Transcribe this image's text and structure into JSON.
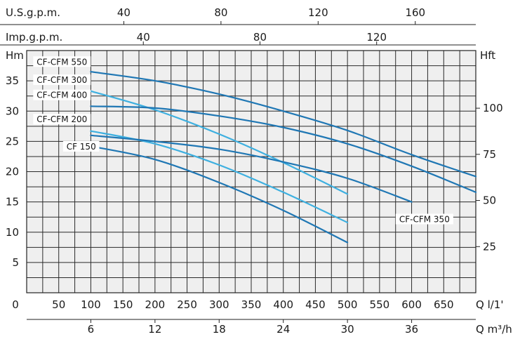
{
  "chart_data": {
    "type": "line",
    "axes": {
      "top_usgpm": {
        "label": "U.S.g.p.m.",
        "ticks": [
          40,
          80,
          120,
          160
        ],
        "per_ls": 15.85
      },
      "top_impgpm": {
        "label": "Imp.g.p.m.",
        "ticks": [
          40,
          80,
          120
        ],
        "per_ls": 13.2
      },
      "left_m": {
        "label": "Hm",
        "ticks": [
          5,
          10,
          15,
          20,
          25,
          30,
          35
        ],
        "ylim": [
          0,
          40
        ]
      },
      "right_ft": {
        "label": "Hft",
        "ticks": [
          25,
          50,
          75,
          100
        ],
        "m_per_ft": 0.3048
      },
      "bottom_lmin": {
        "label": "Q l/1'",
        "ticks": [
          0,
          50,
          100,
          150,
          200,
          250,
          300,
          350,
          400,
          450,
          500,
          550,
          600,
          650
        ],
        "xlim": [
          0,
          700
        ]
      },
      "bottom_m3h": {
        "label": "Q m³/h",
        "ticks": [
          6,
          12,
          18,
          24,
          30,
          36
        ]
      }
    },
    "grid": true,
    "series": [
      {
        "name": "CF-CFM 550",
        "color": "#1f77b4",
        "x": [
          100,
          200,
          300,
          400,
          500,
          600,
          700
        ],
        "y": [
          36.5,
          35,
          32.8,
          30,
          26.8,
          22.8,
          19.2
        ],
        "label_at": [
          55,
          38
        ]
      },
      {
        "name": "CF-CFM 300",
        "color": "#3eb0e0",
        "x": [
          100,
          200,
          300,
          400,
          500
        ],
        "y": [
          33.3,
          30.2,
          26.2,
          21.5,
          16.3
        ],
        "label_at": [
          55,
          35
        ]
      },
      {
        "name": "CF-CFM 400",
        "color": "#1f77b4",
        "x": [
          100,
          200,
          300,
          400,
          500,
          600,
          700
        ],
        "y": [
          30.8,
          30.5,
          29.2,
          27.3,
          24.6,
          20.9,
          16.6
        ],
        "label_at": [
          55,
          32.5
        ]
      },
      {
        "name": "CF-CFM 200",
        "color": "#3eb0e0",
        "x": [
          100,
          200,
          300,
          400,
          500
        ],
        "y": [
          26.7,
          24.6,
          21.1,
          16.6,
          11.6
        ],
        "label_at": [
          55,
          28.5
        ]
      },
      {
        "name": "CF-CFM 350",
        "color": "#1f77b4",
        "x": [
          100,
          200,
          300,
          400,
          500,
          600
        ],
        "y": [
          26.0,
          25.0,
          23.7,
          21.6,
          18.9,
          15.0
        ],
        "label_at": [
          620,
          12
        ]
      },
      {
        "name": "CF 150",
        "color": "#1f77b4",
        "x": [
          100,
          200,
          300,
          400,
          500
        ],
        "y": [
          24.2,
          22.0,
          18.2,
          13.6,
          8.3
        ],
        "label_at": [
          85,
          24
        ]
      }
    ]
  }
}
